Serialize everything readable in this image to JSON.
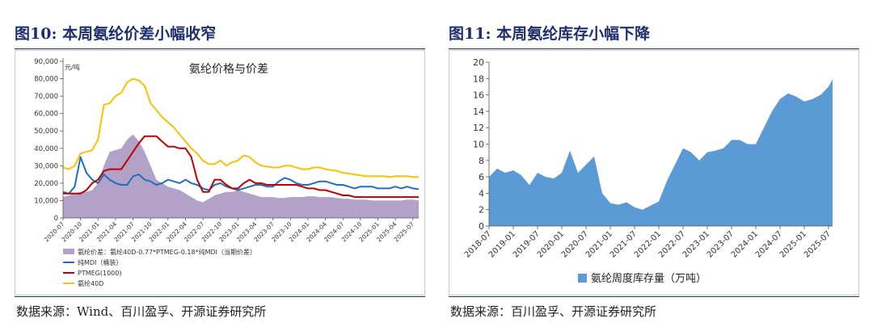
{
  "figures": [
    {
      "number_title": "图10:",
      "title": "本周氨纶价差小幅收窄",
      "source": "数据来源：Wind、百川盈孚、开源证券研究所"
    },
    {
      "number_title": "图11:",
      "title": "本周氨纶库存小幅下降",
      "source": "数据来源：百川盈孚、开源证券研究所"
    }
  ],
  "chart_data": [
    {
      "type": "line",
      "title": "氨纶价格与价差",
      "unit": "元/吨",
      "ylim": [
        0,
        90000
      ],
      "yticks": [
        "0",
        "10,000",
        "20,000",
        "30,000",
        "40,000",
        "50,000",
        "60,000",
        "70,000",
        "80,000",
        "90,000"
      ],
      "xticks": [
        "2020-07",
        "2020-10",
        "2021-01",
        "2021-04",
        "2021-07",
        "2021-10",
        "2022-01",
        "2022-04",
        "2022-07",
        "2022-10",
        "2023-01",
        "2023-04",
        "2023-07",
        "2023-10",
        "2024-01",
        "2024-04",
        "2024-07",
        "2024-10",
        "2025-01",
        "2025-04",
        "2025-07"
      ],
      "legend": [
        "氨纶价差：氨纶40D-0.77*PTMEG-0.18*纯MDI（当期价差）",
        "纯MDI（桶装）",
        "PTMEG(1000)",
        "氨纶40D"
      ],
      "colors": {
        "spread": "#b3a2c8",
        "mdi": "#1f6fc0",
        "ptmeg": "#c00000",
        "a40d": "#ffc000"
      },
      "x": [
        "2020-07",
        "2020-08",
        "2020-09",
        "2020-10",
        "2020-11",
        "2020-12",
        "2021-01",
        "2021-02",
        "2021-03",
        "2021-04",
        "2021-05",
        "2021-06",
        "2021-07",
        "2021-08",
        "2021-09",
        "2021-10",
        "2021-11",
        "2021-12",
        "2022-01",
        "2022-02",
        "2022-03",
        "2022-04",
        "2022-05",
        "2022-06",
        "2022-07",
        "2022-08",
        "2022-09",
        "2022-10",
        "2022-11",
        "2022-12",
        "2023-01",
        "2023-02",
        "2023-03",
        "2023-04",
        "2023-05",
        "2023-06",
        "2023-07",
        "2023-08",
        "2023-09",
        "2023-10",
        "2023-11",
        "2023-12",
        "2024-01",
        "2024-02",
        "2024-03",
        "2024-04",
        "2024-05",
        "2024-06",
        "2024-07",
        "2024-08",
        "2024-09",
        "2024-10",
        "2024-11",
        "2024-12",
        "2025-01",
        "2025-02",
        "2025-03",
        "2025-04",
        "2025-05",
        "2025-06",
        "2025-07",
        "2025-08"
      ],
      "series": [
        {
          "key": "spread",
          "name": "氨纶价差：氨纶40D-0.77*PTMEG-0.18*纯MDI（当期价差）",
          "type": "area",
          "values": [
            12000,
            13000,
            14000,
            15000,
            15000,
            16000,
            20000,
            30000,
            38000,
            39000,
            40000,
            45000,
            48000,
            44000,
            38000,
            30000,
            22000,
            20000,
            18000,
            17000,
            16000,
            14000,
            12000,
            10000,
            9000,
            11000,
            13000,
            14000,
            15000,
            15000,
            16000,
            15000,
            14000,
            13000,
            12000,
            12000,
            12000,
            11500,
            11500,
            12000,
            12000,
            12000,
            12500,
            12500,
            12000,
            12000,
            12000,
            11500,
            11000,
            11000,
            10500,
            10500,
            10500,
            10000,
            10000,
            10000,
            10000,
            10000,
            10000,
            10500,
            10500,
            10000
          ]
        },
        {
          "key": "mdi",
          "name": "纯MDI（桶装）",
          "type": "line",
          "values": [
            15000,
            14000,
            18000,
            35000,
            26000,
            22000,
            20000,
            25000,
            22000,
            20000,
            19000,
            19000,
            24000,
            25000,
            22000,
            21000,
            19000,
            20000,
            22000,
            21000,
            20000,
            22000,
            20000,
            19000,
            17000,
            16000,
            19000,
            20000,
            18000,
            17000,
            16000,
            17000,
            18000,
            19000,
            19000,
            18000,
            18000,
            21000,
            23000,
            22000,
            20000,
            19000,
            19000,
            20000,
            21000,
            21000,
            20000,
            19000,
            19000,
            18000,
            17000,
            18000,
            18000,
            18000,
            17000,
            17000,
            17000,
            18000,
            17000,
            18000,
            17000,
            16500
          ]
        },
        {
          "key": "ptmeg",
          "name": "PTMEG(1000)",
          "type": "line",
          "values": [
            14000,
            14000,
            14000,
            14000,
            16000,
            20000,
            22000,
            27000,
            28000,
            28000,
            28000,
            33000,
            38000,
            43000,
            47000,
            47000,
            47000,
            44000,
            41000,
            41000,
            40000,
            40000,
            35000,
            22000,
            15000,
            15000,
            22000,
            22000,
            19000,
            17000,
            17000,
            20000,
            22000,
            20000,
            20000,
            19000,
            19000,
            19000,
            19000,
            19000,
            19000,
            18000,
            17000,
            17000,
            16000,
            16000,
            15000,
            14000,
            13000,
            13000,
            12000,
            12000,
            12000,
            12000,
            12000,
            12000,
            12000,
            12000,
            12000,
            12000,
            12000,
            12000
          ]
        },
        {
          "key": "a40d",
          "name": "氨纶40D",
          "type": "line",
          "values": [
            29000,
            28000,
            30000,
            37000,
            38000,
            39000,
            45000,
            65000,
            66000,
            70000,
            72000,
            78000,
            80000,
            79000,
            76000,
            66000,
            62000,
            58000,
            55000,
            52000,
            48000,
            44000,
            40000,
            37000,
            33000,
            31000,
            31000,
            33000,
            30000,
            32000,
            33000,
            36000,
            35000,
            32000,
            30000,
            29500,
            29000,
            29000,
            30000,
            30000,
            29000,
            28000,
            28000,
            29000,
            29000,
            28000,
            27500,
            27000,
            26000,
            25500,
            25000,
            24500,
            24000,
            24000,
            24000,
            24000,
            23500,
            24000,
            24000,
            24000,
            23500,
            23500
          ]
        }
      ]
    },
    {
      "type": "area",
      "ylim": [
        0,
        20
      ],
      "yticks": [
        "0",
        "2",
        "4",
        "6",
        "8",
        "10",
        "12",
        "14",
        "16",
        "18",
        "20"
      ],
      "xticks": [
        "2018-07",
        "2019-01",
        "2019-07",
        "2020-01",
        "2020-07",
        "2021-01",
        "2021-07",
        "2022-01",
        "2022-07",
        "2023-01",
        "2023-07",
        "2024-01",
        "2024-07",
        "2025-01",
        "2025-07"
      ],
      "legend": [
        "氨纶周度库存量（万吨）"
      ],
      "colors": {
        "inventory": "#5b9bd5"
      },
      "x": [
        "2018-07",
        "2018-09",
        "2018-11",
        "2019-01",
        "2019-03",
        "2019-05",
        "2019-07",
        "2019-09",
        "2019-11",
        "2020-01",
        "2020-03",
        "2020-05",
        "2020-07",
        "2020-09",
        "2020-11",
        "2021-01",
        "2021-03",
        "2021-05",
        "2021-07",
        "2021-09",
        "2021-11",
        "2022-01",
        "2022-03",
        "2022-05",
        "2022-07",
        "2022-09",
        "2022-11",
        "2023-01",
        "2023-03",
        "2023-05",
        "2023-07",
        "2023-09",
        "2023-11",
        "2024-01",
        "2024-03",
        "2024-05",
        "2024-07",
        "2024-09",
        "2024-11",
        "2025-01",
        "2025-03",
        "2025-05",
        "2025-07",
        "2025-08"
      ],
      "series": [
        {
          "key": "inventory",
          "name": "氨纶周度库存量（万吨）",
          "type": "area",
          "values": [
            6.0,
            7.0,
            6.5,
            6.8,
            6.2,
            5.0,
            6.5,
            6.0,
            5.8,
            6.5,
            9.2,
            6.5,
            7.5,
            8.5,
            4.0,
            2.8,
            2.6,
            2.9,
            2.3,
            2.0,
            2.5,
            3.0,
            5.5,
            7.5,
            9.5,
            9.0,
            8.0,
            9.0,
            9.2,
            9.5,
            10.5,
            10.5,
            10.0,
            10.0,
            12.0,
            14.0,
            15.5,
            16.2,
            15.8,
            15.2,
            15.5,
            16.0,
            17.0,
            17.9
          ]
        }
      ]
    }
  ]
}
